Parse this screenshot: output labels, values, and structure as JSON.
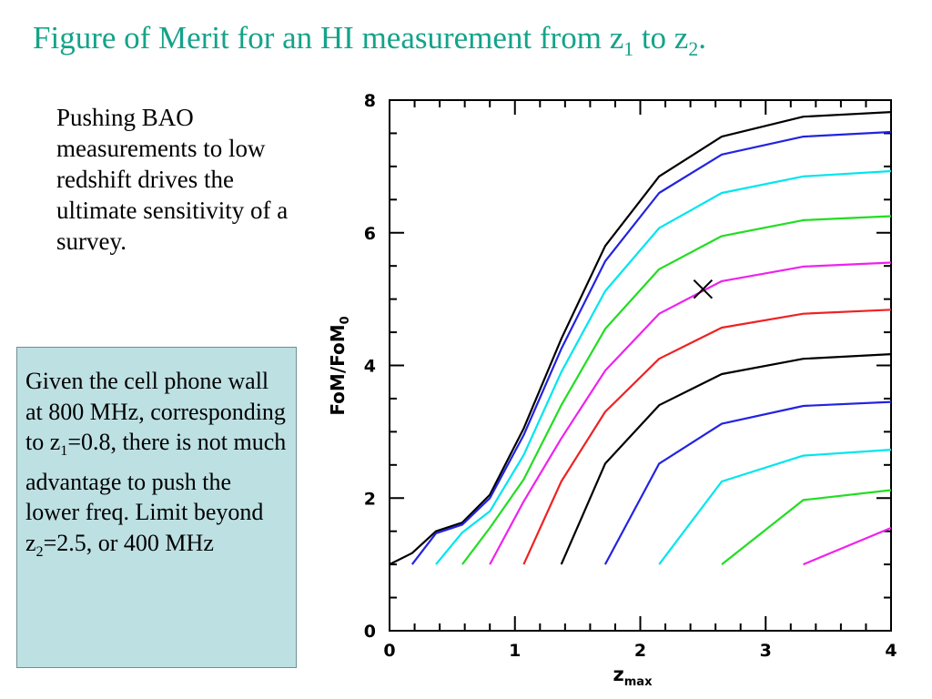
{
  "slide": {
    "title": {
      "text": "Figure of Merit for an HI measurement from z",
      "sub1": "1",
      "mid": " to z",
      "sub2": "2",
      "end": "."
    },
    "intro": "Pushing BAO measurements to low redshift drives the ultimate sensitivity of a survey.",
    "note": {
      "p1": "Given the cell phone wall at 800 MHz, corresponding to z",
      "p1_sub": "1",
      "p2": "=0.8, there is not much advantage to push the lower freq. Limit beyond z",
      "p2_sub": "2",
      "p3": "=2.5, or 400 MHz"
    }
  },
  "chart_data": {
    "type": "line",
    "xlabel_main": "z",
    "xlabel_sub": "max",
    "ylabel_main": "FoM/FoM",
    "ylabel_sub": "0",
    "xlim": [
      0,
      4
    ],
    "ylim": [
      0,
      8
    ],
    "x_ticks": [
      "0",
      "1",
      "2",
      "3",
      "4"
    ],
    "y_ticks": [
      "0",
      "2",
      "4",
      "6",
      "8"
    ],
    "grid": false,
    "legend": "none",
    "series": [
      {
        "color": "#000000",
        "x": [
          0,
          0.18,
          0.37,
          0.58,
          0.8,
          1.07,
          1.37,
          1.72,
          2.15,
          2.65,
          3.3,
          4.0
        ],
        "y": [
          1.0,
          1.17,
          1.5,
          1.63,
          2.05,
          3.05,
          4.4,
          5.8,
          6.85,
          7.45,
          7.75,
          7.82
        ]
      },
      {
        "color": "#2323e0",
        "x": [
          0.18,
          0.37,
          0.58,
          0.8,
          1.07,
          1.37,
          1.72,
          2.15,
          2.65,
          3.3,
          4.0
        ],
        "y": [
          1.0,
          1.47,
          1.6,
          2.0,
          2.95,
          4.25,
          5.57,
          6.6,
          7.18,
          7.45,
          7.52
        ]
      },
      {
        "color": "#00e5ee",
        "x": [
          0.37,
          0.58,
          0.8,
          1.07,
          1.37,
          1.72,
          2.15,
          2.65,
          3.3,
          4.0
        ],
        "y": [
          1.0,
          1.48,
          1.8,
          2.65,
          3.9,
          5.12,
          6.07,
          6.6,
          6.85,
          6.93
        ]
      },
      {
        "color": "#22dd22",
        "x": [
          0.58,
          0.8,
          1.07,
          1.37,
          1.72,
          2.15,
          2.65,
          3.3,
          4.0
        ],
        "y": [
          1.0,
          1.55,
          2.28,
          3.4,
          4.55,
          5.45,
          5.95,
          6.19,
          6.25
        ]
      },
      {
        "color": "#ee22ee",
        "x": [
          0.8,
          1.07,
          1.37,
          1.72,
          2.15,
          2.65,
          3.3,
          4.0
        ],
        "y": [
          1.0,
          1.95,
          2.9,
          3.92,
          4.78,
          5.27,
          5.49,
          5.55
        ]
      },
      {
        "color": "#ee2222",
        "x": [
          1.07,
          1.37,
          1.72,
          2.15,
          2.65,
          3.3,
          4.0
        ],
        "y": [
          1.0,
          2.25,
          3.3,
          4.1,
          4.57,
          4.78,
          4.84
        ]
      },
      {
        "color": "#000000",
        "x": [
          1.37,
          1.72,
          2.15,
          2.65,
          3.3,
          4.0
        ],
        "y": [
          1.0,
          2.52,
          3.4,
          3.87,
          4.1,
          4.17
        ]
      },
      {
        "color": "#2323e0",
        "x": [
          1.72,
          2.15,
          2.65,
          3.3,
          4.0
        ],
        "y": [
          1.0,
          2.52,
          3.12,
          3.39,
          3.45
        ]
      },
      {
        "color": "#00e5ee",
        "x": [
          2.15,
          2.65,
          3.3,
          4.0
        ],
        "y": [
          1.0,
          2.25,
          2.64,
          2.73
        ]
      },
      {
        "color": "#22dd22",
        "x": [
          2.65,
          3.3,
          4.0
        ],
        "y": [
          1.0,
          1.97,
          2.12
        ]
      },
      {
        "color": "#ee22ee",
        "x": [
          3.3,
          4.0
        ],
        "y": [
          1.0,
          1.55
        ]
      }
    ],
    "marker": {
      "x": 2.5,
      "y": 5.15,
      "symbol": "x"
    }
  }
}
